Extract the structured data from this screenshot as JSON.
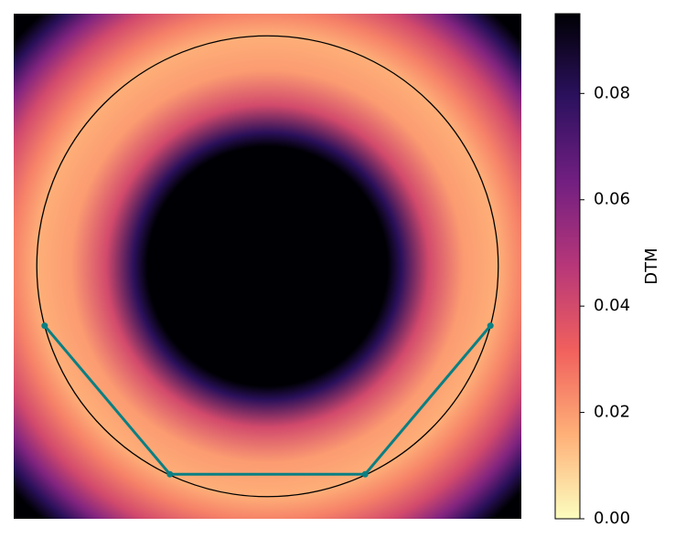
{
  "chart_data": {
    "type": "heatmap",
    "colorbar_label": "DTM",
    "clim": [
      0,
      0.095
    ],
    "colorbar_ticks": [
      {
        "value": 0,
        "label": "0.00"
      },
      0.02,
      0.04,
      0.06,
      0.08
    ],
    "colormap": [
      "#fcfdbf",
      "#feb078",
      "#f1605d",
      "#b73779",
      "#721f81",
      "#2c115f",
      "#000004"
    ],
    "xlim": [
      -1.1,
      1.1
    ],
    "ylim": [
      -1.1,
      1.1
    ],
    "radial_profile": {
      "r": [
        0.52,
        0.58,
        0.7,
        0.85,
        1.0,
        1.1,
        1.22,
        1.32,
        1.4,
        1.47
      ],
      "values": [
        0.095,
        0.08,
        0.04,
        0.02,
        0.016,
        0.025,
        0.04,
        0.06,
        0.08,
        0.095
      ]
    },
    "circle": {
      "center": [
        0,
        0
      ],
      "radius": 1,
      "color": "#000000"
    },
    "path": {
      "color": "#0b7f82",
      "x": [
        -0.966,
        -0.423,
        0.423,
        0.966
      ],
      "y": [
        -0.259,
        -0.906,
        -0.906,
        -0.259
      ]
    }
  }
}
